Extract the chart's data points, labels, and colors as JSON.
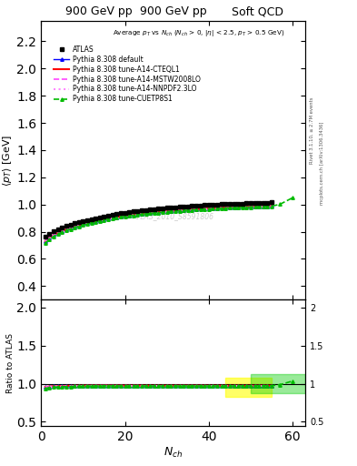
{
  "title_left": "900 GeV pp",
  "title_right": "Soft QCD",
  "main_ylabel": "$\\langle p_T \\rangle$ [GeV]",
  "ratio_ylabel": "Ratio to ATLAS",
  "xlabel": "$N_{ch}$",
  "annotation": "Average $p_T$ vs $N_{ch}$ ($N_{ch}$ > 0, |$\\eta$| < 2.5, $p_T$ > 0.5 GeV)",
  "watermark": "ATLAS_2010_S8591806",
  "right_label1": "Rivet 3.1.10, ≥ 2.7M events",
  "right_label2": "mcplots.cern.ch [arXiv:1306.3436]",
  "xlim": [
    0,
    63
  ],
  "ylim_main": [
    0.3,
    2.35
  ],
  "ylim_ratio": [
    0.44,
    2.1
  ],
  "yticks_main": [
    0.4,
    0.6,
    0.8,
    1.0,
    1.2,
    1.4,
    1.6,
    1.8,
    2.0,
    2.2
  ],
  "yticks_ratio": [
    0.5,
    1.0,
    1.5,
    2.0
  ],
  "xticks": [
    0,
    20,
    40,
    60
  ],
  "series": {
    "ATLAS": {
      "color": "black",
      "marker": "s",
      "markersize": 3.5,
      "linestyle": "none",
      "label": "ATLAS",
      "x": [
        1,
        2,
        3,
        4,
        5,
        6,
        7,
        8,
        9,
        10,
        11,
        12,
        13,
        14,
        15,
        16,
        17,
        18,
        19,
        20,
        21,
        22,
        23,
        24,
        25,
        26,
        27,
        28,
        29,
        30,
        31,
        32,
        33,
        34,
        35,
        36,
        37,
        38,
        39,
        40,
        41,
        42,
        43,
        44,
        45,
        46,
        47,
        48,
        49,
        50,
        51,
        52,
        53,
        54,
        55
      ],
      "y": [
        0.762,
        0.786,
        0.802,
        0.817,
        0.83,
        0.841,
        0.852,
        0.861,
        0.87,
        0.878,
        0.886,
        0.893,
        0.9,
        0.907,
        0.913,
        0.919,
        0.925,
        0.93,
        0.935,
        0.94,
        0.945,
        0.949,
        0.953,
        0.957,
        0.961,
        0.964,
        0.967,
        0.97,
        0.973,
        0.976,
        0.979,
        0.981,
        0.983,
        0.985,
        0.987,
        0.989,
        0.991,
        0.993,
        0.995,
        0.997,
        0.999,
        1.0,
        1.002,
        1.003,
        1.005,
        1.006,
        1.007,
        1.008,
        1.009,
        1.01,
        1.011,
        1.012,
        1.013,
        1.014,
        1.015
      ]
    },
    "default": {
      "color": "#0000ff",
      "marker": "^",
      "markersize": 2.5,
      "linestyle": "-",
      "linewidth": 1.0,
      "label": "Pythia 8.308 default",
      "x": [
        1,
        2,
        3,
        4,
        5,
        6,
        7,
        8,
        9,
        10,
        11,
        12,
        13,
        14,
        15,
        16,
        17,
        18,
        19,
        20,
        21,
        22,
        23,
        24,
        25,
        26,
        27,
        28,
        29,
        30,
        31,
        32,
        33,
        34,
        35,
        36,
        37,
        38,
        39,
        40,
        41,
        42,
        43,
        44,
        45,
        46,
        47,
        48,
        49,
        50,
        51,
        52,
        53,
        54,
        55
      ],
      "y": [
        0.73,
        0.757,
        0.776,
        0.792,
        0.805,
        0.817,
        0.828,
        0.838,
        0.847,
        0.856,
        0.864,
        0.871,
        0.878,
        0.885,
        0.891,
        0.897,
        0.902,
        0.907,
        0.912,
        0.917,
        0.921,
        0.925,
        0.929,
        0.933,
        0.936,
        0.939,
        0.942,
        0.945,
        0.948,
        0.951,
        0.954,
        0.956,
        0.958,
        0.96,
        0.962,
        0.964,
        0.966,
        0.968,
        0.97,
        0.971,
        0.973,
        0.974,
        0.976,
        0.977,
        0.978,
        0.98,
        0.981,
        0.982,
        0.983,
        0.984,
        0.985,
        0.986,
        0.987,
        0.988,
        0.989
      ]
    },
    "CTEQL1": {
      "color": "#ff0000",
      "marker": null,
      "markersize": 0,
      "linestyle": "-",
      "linewidth": 1.5,
      "label": "Pythia 8.308 tune-A14-CTEQL1",
      "x": [
        1,
        2,
        3,
        4,
        5,
        6,
        7,
        8,
        9,
        10,
        11,
        12,
        13,
        14,
        15,
        16,
        17,
        18,
        19,
        20,
        21,
        22,
        23,
        24,
        25,
        26,
        27,
        28,
        29,
        30,
        31,
        32,
        33,
        34,
        35,
        36,
        37,
        38,
        39,
        40,
        41,
        42,
        43,
        44,
        45,
        46,
        47,
        48,
        49,
        50,
        51,
        52,
        53,
        54,
        55
      ],
      "y": [
        0.73,
        0.757,
        0.776,
        0.792,
        0.805,
        0.817,
        0.828,
        0.838,
        0.847,
        0.856,
        0.864,
        0.871,
        0.878,
        0.885,
        0.891,
        0.897,
        0.902,
        0.907,
        0.912,
        0.917,
        0.921,
        0.925,
        0.929,
        0.933,
        0.936,
        0.939,
        0.942,
        0.945,
        0.948,
        0.951,
        0.954,
        0.956,
        0.958,
        0.96,
        0.962,
        0.964,
        0.966,
        0.968,
        0.97,
        0.971,
        0.973,
        0.974,
        0.976,
        0.977,
        0.978,
        0.98,
        0.981,
        0.982,
        0.983,
        0.984,
        0.985,
        0.986,
        0.987,
        0.988,
        0.989
      ]
    },
    "MSTW2008LO": {
      "color": "#ff44ff",
      "marker": null,
      "markersize": 0,
      "linestyle": "--",
      "linewidth": 1.2,
      "label": "Pythia 8.308 tune-A14-MSTW2008LO",
      "x": [
        1,
        2,
        3,
        4,
        5,
        6,
        7,
        8,
        9,
        10,
        11,
        12,
        13,
        14,
        15,
        16,
        17,
        18,
        19,
        20,
        21,
        22,
        23,
        24,
        25,
        26,
        27,
        28,
        29,
        30,
        31,
        32,
        33,
        34,
        35,
        36,
        37,
        38,
        39,
        40,
        41,
        42,
        43,
        44,
        45,
        46,
        47,
        48,
        49,
        50,
        51,
        52,
        53,
        54,
        55
      ],
      "y": [
        0.728,
        0.755,
        0.774,
        0.79,
        0.803,
        0.815,
        0.826,
        0.836,
        0.845,
        0.854,
        0.862,
        0.869,
        0.876,
        0.883,
        0.889,
        0.895,
        0.9,
        0.905,
        0.91,
        0.915,
        0.919,
        0.923,
        0.927,
        0.931,
        0.934,
        0.937,
        0.94,
        0.943,
        0.946,
        0.949,
        0.952,
        0.954,
        0.956,
        0.958,
        0.96,
        0.962,
        0.964,
        0.966,
        0.968,
        0.969,
        0.971,
        0.972,
        0.974,
        0.975,
        0.976,
        0.978,
        0.979,
        0.98,
        0.981,
        0.982,
        0.983,
        0.984,
        0.985,
        0.986,
        0.987
      ]
    },
    "NNPDF23LO": {
      "color": "#ff88ff",
      "marker": null,
      "markersize": 0,
      "linestyle": ":",
      "linewidth": 1.5,
      "label": "Pythia 8.308 tune-A14-NNPDF2.3LO",
      "x": [
        1,
        2,
        3,
        4,
        5,
        6,
        7,
        8,
        9,
        10,
        11,
        12,
        13,
        14,
        15,
        16,
        17,
        18,
        19,
        20,
        21,
        22,
        23,
        24,
        25,
        26,
        27,
        28,
        29,
        30,
        31,
        32,
        33,
        34,
        35,
        36,
        37,
        38,
        39,
        40,
        41,
        42,
        43,
        44,
        45,
        46,
        47,
        48,
        49,
        50,
        51,
        52,
        53,
        54,
        55
      ],
      "y": [
        0.726,
        0.753,
        0.772,
        0.788,
        0.801,
        0.813,
        0.824,
        0.834,
        0.843,
        0.852,
        0.86,
        0.867,
        0.874,
        0.881,
        0.887,
        0.893,
        0.898,
        0.903,
        0.908,
        0.913,
        0.917,
        0.921,
        0.925,
        0.929,
        0.932,
        0.935,
        0.938,
        0.941,
        0.944,
        0.947,
        0.95,
        0.952,
        0.954,
        0.956,
        0.958,
        0.96,
        0.962,
        0.964,
        0.966,
        0.967,
        0.969,
        0.97,
        0.972,
        0.973,
        0.974,
        0.976,
        0.977,
        0.978,
        0.979,
        0.98,
        0.981,
        0.982,
        0.983,
        0.984,
        0.985
      ]
    },
    "CUETP8S1": {
      "color": "#00bb00",
      "marker": "^",
      "markersize": 2.5,
      "linestyle": "--",
      "linewidth": 1.2,
      "label": "Pythia 8.308 tune-CUETP8S1",
      "x": [
        1,
        2,
        3,
        4,
        5,
        6,
        7,
        8,
        9,
        10,
        11,
        12,
        13,
        14,
        15,
        16,
        17,
        18,
        19,
        20,
        21,
        22,
        23,
        24,
        25,
        26,
        27,
        28,
        29,
        30,
        31,
        32,
        33,
        34,
        35,
        36,
        37,
        38,
        39,
        40,
        41,
        42,
        43,
        44,
        45,
        46,
        47,
        48,
        49,
        50,
        51,
        52,
        53,
        54,
        55,
        57,
        60
      ],
      "y": [
        0.715,
        0.745,
        0.765,
        0.782,
        0.796,
        0.809,
        0.82,
        0.831,
        0.84,
        0.85,
        0.858,
        0.866,
        0.873,
        0.88,
        0.887,
        0.893,
        0.898,
        0.903,
        0.908,
        0.913,
        0.917,
        0.921,
        0.925,
        0.929,
        0.932,
        0.935,
        0.938,
        0.941,
        0.944,
        0.947,
        0.95,
        0.952,
        0.954,
        0.956,
        0.958,
        0.96,
        0.962,
        0.964,
        0.966,
        0.967,
        0.969,
        0.97,
        0.972,
        0.973,
        0.975,
        0.976,
        0.978,
        0.979,
        0.98,
        0.981,
        0.983,
        0.984,
        0.985,
        0.987,
        0.988,
        1.002,
        1.05
      ]
    }
  },
  "ratio_bands": [
    {
      "x_start": 44,
      "x_end": 55,
      "y_low": 0.825,
      "y_high": 1.075,
      "color": "#ffff00",
      "alpha": 0.6
    },
    {
      "x_start": 50,
      "x_end": 63,
      "y_low": 0.88,
      "y_high": 1.12,
      "color": "#00cc00",
      "alpha": 0.4
    }
  ]
}
